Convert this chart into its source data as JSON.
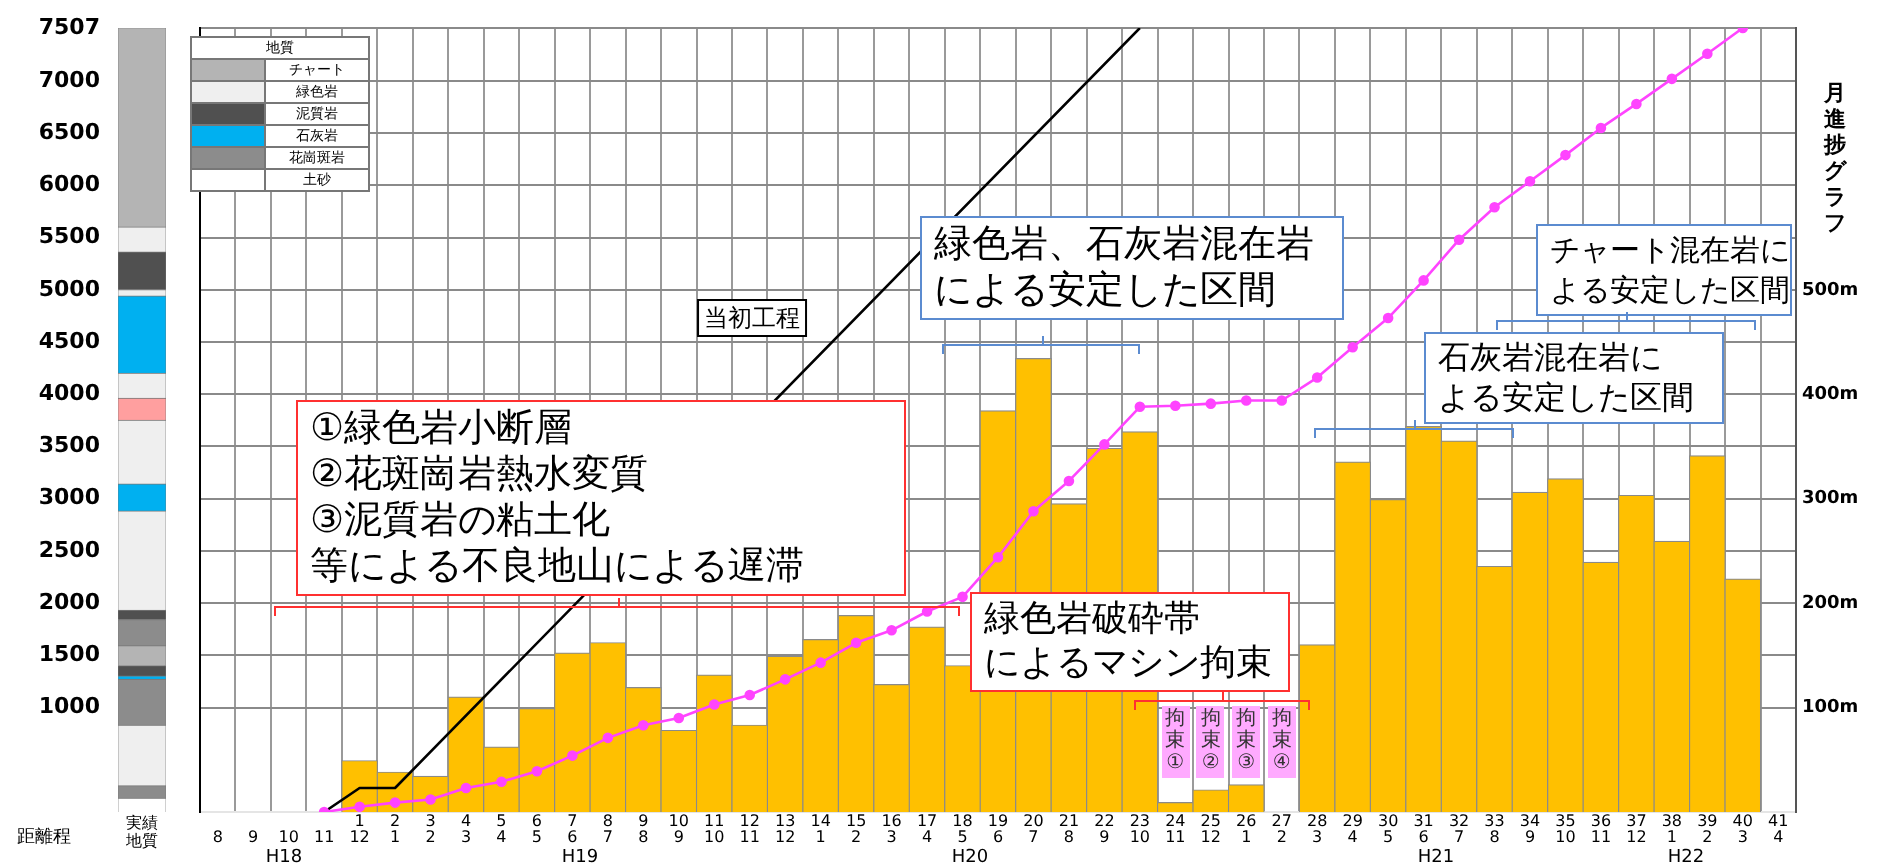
{
  "chart_data": [
    {
      "type": "bar",
      "categories": [
        "8",
        "9",
        "10",
        "11",
        "1\n12",
        "2\n1",
        "3\n2",
        "4\n3",
        "5\n4",
        "6\n5",
        "7\n6",
        "8\n7",
        "9\n8",
        "10\n9",
        "11\n10",
        "12\n11",
        "13\n12",
        "14\n1",
        "15\n2",
        "16\n3",
        "17\n4",
        "18\n5",
        "19\n6",
        "20\n7",
        "21\n8",
        "22\n9",
        "23\n10",
        "24\n11",
        "25\n12",
        "26\n1",
        "27\n2",
        "28\n3",
        "29\n4",
        "30\n5",
        "31\n6",
        "32\n7",
        "33\n8",
        "34\n9",
        "35\n10",
        "36\n11",
        "37\n12",
        "38\n1",
        "39\n2",
        "40\n3",
        "41\n4"
      ],
      "series": [
        {
          "type": "bar",
          "axis": "y2",
          "color": "#ffc000",
          "values": [
            null,
            null,
            null,
            null,
            49,
            38,
            34,
            110,
            62,
            99,
            152,
            162,
            119,
            78,
            131,
            83,
            149,
            165,
            188,
            122,
            177,
            140,
            384,
            434,
            295,
            348,
            364,
            9,
            21,
            26,
            null,
            160,
            335,
            299,
            369,
            355,
            235,
            306,
            319,
            239,
            303,
            259,
            341,
            223,
            null
          ]
        },
        {
          "type": "line",
          "color": "#ff44ff",
          "marker": "circle",
          "values": [
            null,
            null,
            null,
            0,
            50,
            90,
            120,
            230,
            290,
            390,
            540,
            710,
            830,
            900,
            1030,
            1120,
            1270,
            1430,
            1620,
            1740,
            1920,
            2060,
            2440,
            2880,
            3170,
            3520,
            3880,
            3890,
            3910,
            3940,
            3940,
            4160,
            4450,
            4730,
            5090,
            5480,
            5790,
            6040,
            6290,
            6550,
            6780,
            7020,
            7260,
            7507,
            null
          ]
        },
        {
          "type": "line",
          "name": "当初工程",
          "color": "#000000",
          "marker": "none",
          "values": [
            null,
            null,
            null,
            0,
            230,
            230,
            null,
            null,
            null,
            null,
            null,
            null,
            null,
            null,
            null,
            null,
            null,
            null,
            null,
            null,
            null,
            null,
            null,
            null,
            null,
            null,
            7507,
            null,
            null,
            null,
            null,
            null,
            null,
            null,
            null,
            null,
            null,
            null,
            null,
            null,
            null,
            null,
            null,
            null,
            null
          ]
        }
      ],
      "ylim": [
        0,
        7507
      ],
      "yticks": [
        1000,
        1500,
        2000,
        2500,
        3000,
        3500,
        4000,
        4500,
        5000,
        5500,
        6000,
        6500,
        7000,
        7507
      ],
      "y2lim": [
        0,
        750.7
      ],
      "y2ticks": [
        {
          "value": 100,
          "label": "100m"
        },
        {
          "value": 200,
          "label": "200m"
        },
        {
          "value": 300,
          "label": "300m"
        },
        {
          "value": 400,
          "label": "400m"
        },
        {
          "value": 500,
          "label": "500m"
        }
      ],
      "y2label": "月進捗グラフ",
      "grid": true,
      "legend": false,
      "annotations": [
        "①緑色岩小断層",
        "②花斑崗岩熱水変質",
        "③泥質岩の粘土化",
        "等による不良地山による遅滞",
        "緑色岩、石灰岩混在岩による安定した区間",
        "石灰岩混在岩による安定した区間",
        "チャート混在岩による安定した区間",
        "緑色岩破砕帯によるマシン拘束",
        {
          "text": "拘束①",
          "x": "24\n11",
          "y": 670
        },
        {
          "text": "拘束②",
          "x": "25\n12",
          "y": 670
        },
        {
          "text": "拘束③",
          "x": "26\n1",
          "y": 670
        },
        {
          "text": "拘束④",
          "x": "27\n2",
          "y": 670
        },
        "H18",
        "H19",
        "H20",
        "H21",
        "H22",
        "距離程"
      ]
    },
    {
      "type": "bar",
      "stacked": true,
      "categories": [
        null
      ],
      "ylim": [
        0,
        7507
      ],
      "tick_labels": false,
      "xlabel": "実績地質",
      "legend_title": "地質",
      "legend": "right",
      "series": [
        {
          "name": "土砂",
          "color": "#ffffff",
          "values": [
            130
          ]
        },
        {
          "color": "#8c8c8c",
          "values": [
            120
          ]
        },
        {
          "color": "#efefef",
          "values": [
            580
          ]
        },
        {
          "color": "#8c8c8c",
          "values": [
            440
          ]
        },
        {
          "color": "#00b0f0",
          "values": [
            30
          ]
        },
        {
          "color": "#505050",
          "values": [
            100
          ]
        },
        {
          "color": "#b4b4b4",
          "values": [
            190
          ]
        },
        {
          "name": "花崗斑岩",
          "color": "#8c8c8c",
          "values": [
            250
          ]
        },
        {
          "color": "#505050",
          "values": [
            90
          ]
        },
        {
          "color": "#efefef",
          "values": [
            950
          ]
        },
        {
          "color": "#00b0f0",
          "values": [
            260
          ]
        },
        {
          "color": "#efefef",
          "values": [
            610
          ]
        },
        {
          "color": "#ff9f9f",
          "values": [
            210
          ]
        },
        {
          "color": "#efefef",
          "values": [
            240
          ]
        },
        {
          "name": "石灰岩",
          "color": "#00b0f0",
          "values": [
            740
          ]
        },
        {
          "color": "#efefef",
          "values": [
            60
          ]
        },
        {
          "name": "泥質岩",
          "color": "#505050",
          "values": [
            360
          ]
        },
        {
          "name": "緑色岩",
          "color": "#efefef",
          "values": [
            240
          ]
        },
        {
          "name": "チャート",
          "color": "#b4b4b4",
          "values": [
            1907
          ]
        }
      ]
    }
  ]
}
